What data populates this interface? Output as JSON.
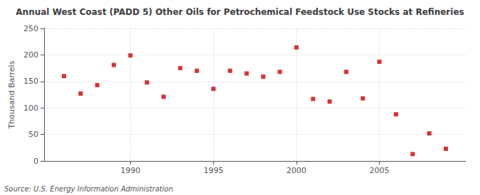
{
  "chart_data": {
    "type": "scatter",
    "title": "Annual West Coast (PADD 5) Other Oils for Petrochemical Feedstock Use Stocks at Refineries",
    "ylabel": "Thousand Barrels",
    "annotations": [
      "Source: U.S. Energy Information Administration"
    ],
    "x": [
      1986,
      1987,
      1988,
      1989,
      1990,
      1991,
      1992,
      1993,
      1994,
      1995,
      1996,
      1997,
      1998,
      1999,
      2000,
      2001,
      2002,
      2003,
      2004,
      2005,
      2006,
      2007,
      2008,
      2009
    ],
    "values": [
      160,
      127,
      143,
      181,
      199,
      148,
      121,
      175,
      170,
      136,
      170,
      165,
      159,
      168,
      214,
      117,
      112,
      168,
      118,
      187,
      88,
      13,
      52,
      23
    ],
    "color": "#cc0000",
    "marker": "square",
    "xlim": [
      1984.8,
      2010.2
    ],
    "xticks": [
      1990,
      1995,
      2000,
      2005
    ],
    "ylim": [
      0,
      250
    ],
    "yticks": [
      0,
      50,
      100,
      150,
      200,
      250
    ],
    "grid": true
  }
}
